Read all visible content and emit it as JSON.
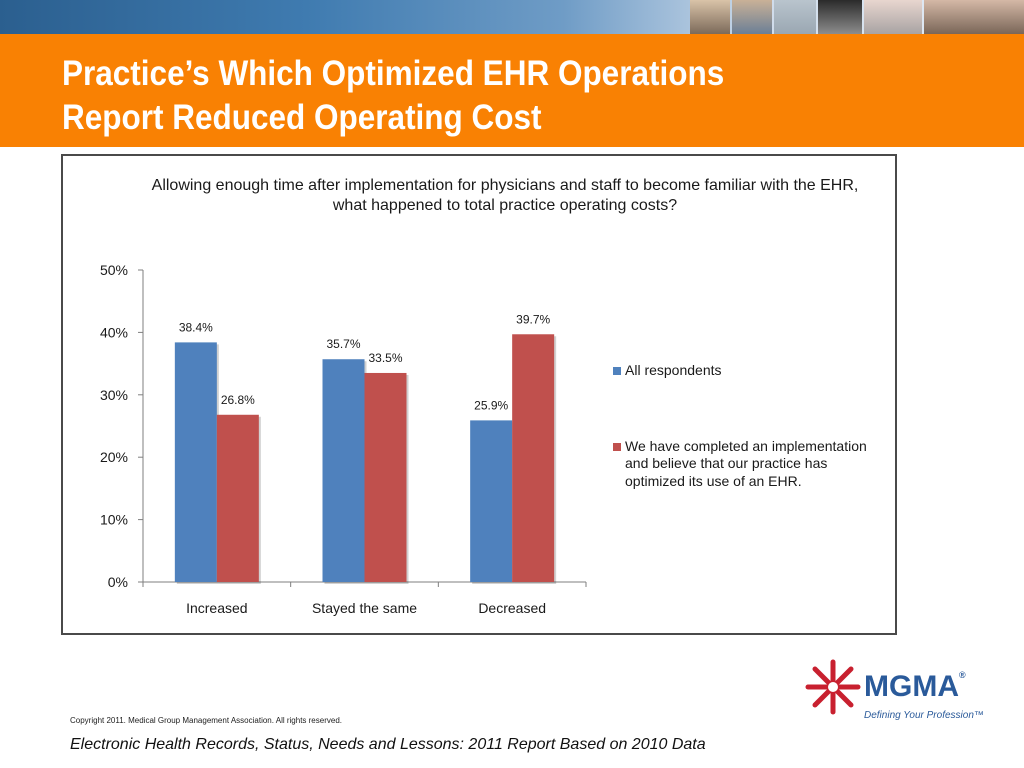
{
  "slide": {
    "title_lines": [
      "Practice’s Which Optimized EHR Operations",
      "Report Reduced Operating Cost"
    ],
    "copyright": "Copyright 2011. Medical Group Management Association. All rights reserved.",
    "source": "Electronic Health Records, Status, Needs and Lessons: 2011 Report Based on 2010 Data",
    "logo": {
      "wordmark": "MGMA",
      "registered": "®",
      "tagline": "Defining Your Profession™"
    },
    "colors": {
      "band": "#f98103",
      "logo_blue": "#2a5a9a",
      "logo_red": "#c8202f"
    }
  },
  "chart_data": {
    "type": "bar",
    "title": "Allowing enough time after implementation for physicians and staff to become familiar with the EHR, what happened to total practice operating costs?",
    "categories": [
      "Increased",
      "Stayed the same",
      "Decreased"
    ],
    "series": [
      {
        "name": "All respondents",
        "values": [
          38.4,
          35.7,
          25.9
        ],
        "labels": [
          "38.4%",
          "35.7%",
          "25.9%"
        ],
        "color": "#4f81bd"
      },
      {
        "name": "We have completed an implementation and believe that our practice has optimized its use of an EHR.",
        "values": [
          26.8,
          33.5,
          39.7
        ],
        "labels": [
          "26.8%",
          "33.5%",
          "39.7%"
        ],
        "color": "#c0504d"
      }
    ],
    "yticks": [
      "0%",
      "10%",
      "20%",
      "30%",
      "40%",
      "50%"
    ],
    "ylim": [
      0,
      50
    ],
    "grid": false,
    "legend_position": "right"
  }
}
